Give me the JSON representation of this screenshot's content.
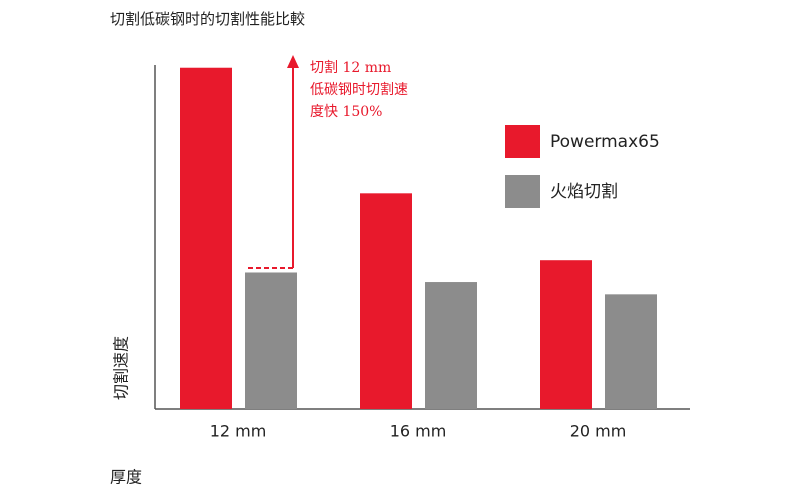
{
  "chart_data": {
    "type": "bar",
    "title": "切割低碳钢时的切割性能比較",
    "y_label": "切割速度",
    "x_label": "厚度",
    "categories": [
      "12 mm",
      "16 mm",
      "20 mm"
    ],
    "series": [
      {
        "name": "Powermax65",
        "color": "#e8192c",
        "values": [
          250,
          158,
          109
        ]
      },
      {
        "name": "火焰切割",
        "color": "#8c8c8c",
        "values": [
          100,
          93,
          84
        ]
      }
    ],
    "ylim": [
      0,
      252
    ],
    "annotation": [
      "切割 12 mm",
      "低碳钢时切割速",
      "度快 150%"
    ]
  }
}
